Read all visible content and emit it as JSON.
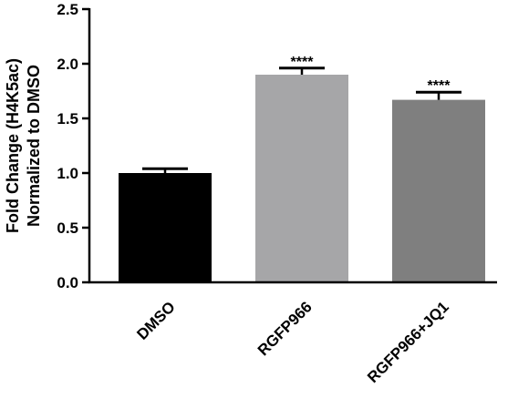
{
  "chart_data": {
    "type": "bar",
    "title": "",
    "xlabel": "",
    "ylabel_lines": [
      "Fold Change (H4K5ac)",
      "Normalized to DMSO"
    ],
    "categories": [
      "DMSO",
      "RGFP966",
      "RGFP966+JQ1"
    ],
    "values": [
      1.0,
      1.9,
      1.67
    ],
    "errors": [
      0.04,
      0.06,
      0.07
    ],
    "annotations": [
      "",
      "****",
      "****"
    ],
    "colors": [
      "#000000",
      "#a6a6a8",
      "#7f7f7f"
    ],
    "ylim": [
      0,
      2.5
    ],
    "yticks": [
      "0.0",
      "0.5",
      "1.0",
      "1.5",
      "2.0",
      "2.5"
    ],
    "grid": false,
    "legend": "none"
  }
}
